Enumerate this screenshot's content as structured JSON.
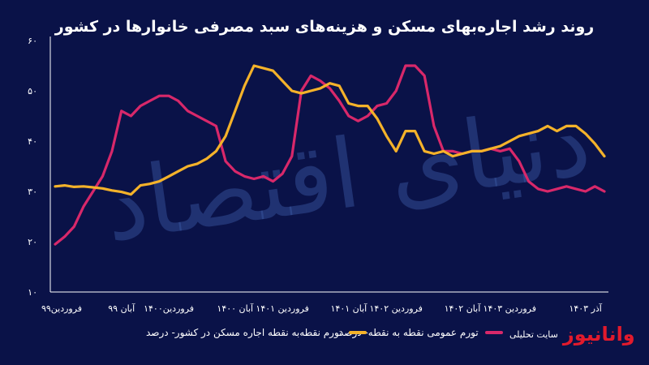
{
  "chart_data": {
    "type": "line",
    "title": "روند رشد اجاره‌بهای مسکن و هزینه‌های سبد مصرفی خانوارها در کشور",
    "xlabel": "",
    "ylabel": "",
    "ylim": [
      10,
      60
    ],
    "yticks": [
      "۱۰",
      "۲۰",
      "۳۰",
      "۴۰",
      "۵۰",
      "۶۰"
    ],
    "xticks": [
      "فروردین۹۹",
      "آبان ۹۹",
      "فروردین۱۴۰۰",
      "آبان ۱۴۰۰",
      "فروردین ۱۴۰۱",
      "آبان ۱۴۰۱",
      "فروردین ۱۴۰۲",
      "آبان ۱۴۰۲",
      "فروردین ۱۴۰۳",
      "آذر ۱۴۰۳"
    ],
    "x_start_month": 0,
    "x_end_month": 56,
    "grid": false,
    "legend_position": "bottom",
    "series": [
      {
        "name": "تورم نقطه‌به نقطه اجاره مسکن در کشور- درصد",
        "color": "#f4b22a",
        "values": [
          31,
          31.2,
          30.9,
          31,
          30.8,
          30.6,
          30.2,
          29.9,
          29.4,
          31.2,
          31.5,
          32,
          33,
          34,
          35,
          35.5,
          36.5,
          38,
          41,
          46,
          51,
          55,
          54.5,
          54,
          52,
          50,
          49.5,
          50,
          50.5,
          51.5,
          51,
          47.5,
          47,
          47,
          44.5,
          41,
          38,
          42,
          42,
          38,
          37.5,
          38,
          37,
          37.5,
          38,
          38,
          38.5,
          39,
          40,
          41,
          41.5,
          42,
          43,
          42,
          43,
          43,
          41.5,
          39.5,
          37
        ]
      },
      {
        "name": "تورم عمومی نقطه به نقطه- درصد",
        "color": "#d8286a",
        "values": [
          19.5,
          21,
          23,
          27,
          30,
          33,
          38,
          46,
          45,
          47,
          48,
          49,
          49,
          48,
          46,
          45,
          44,
          43,
          36,
          34,
          33,
          32.5,
          33,
          32,
          33.5,
          37,
          50,
          53,
          52,
          50.5,
          48,
          45,
          44,
          45,
          47,
          47.5,
          50,
          55,
          55,
          53,
          43,
          38,
          38,
          37.5,
          38,
          38,
          38.5,
          38,
          38.5,
          36,
          32,
          30.5,
          30,
          30.5,
          31,
          30.5,
          30,
          31,
          30
        ]
      }
    ]
  },
  "watermark": {
    "text": "دنیای اقتصاد"
  },
  "brand": {
    "logo": "وانانیوز",
    "subtitle": "سایت تحلیلی"
  },
  "colors": {
    "background": "#0a1248",
    "axis": "#ffffff",
    "watermark": "#3c5aa6"
  }
}
